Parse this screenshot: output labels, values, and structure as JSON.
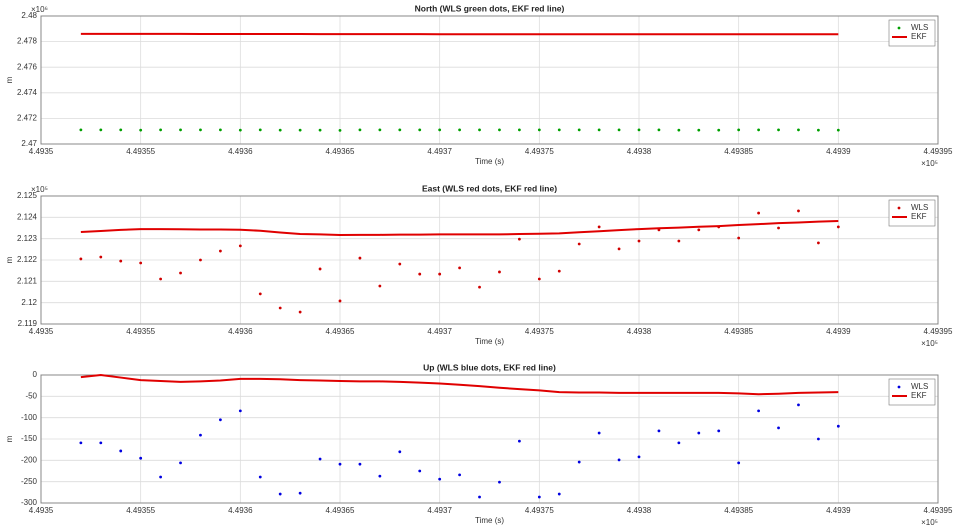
{
  "chart_data": [
    {
      "type": "line",
      "title": "North (WLS green dots, EKF red line)",
      "x_label": "Time (s)",
      "y_label": "m",
      "x_exponent": "×10⁵",
      "y_exponent": "×10⁶",
      "grid": true,
      "legend": "top-right",
      "xlim": [
        4.4935,
        4.49395
      ],
      "xticks": [
        4.4935,
        4.49355,
        4.4936,
        4.49365,
        4.4937,
        4.49375,
        4.4938,
        4.49385,
        4.4939,
        4.49395
      ],
      "ylim": [
        2.47,
        2.48
      ],
      "yticks": [
        2.47,
        2.472,
        2.474,
        2.476,
        2.478,
        2.48
      ],
      "x": [
        4.49352,
        4.49353,
        4.49354,
        4.49355,
        4.49356,
        4.49357,
        4.49358,
        4.49359,
        4.4936,
        4.49361,
        4.49362,
        4.49363,
        4.49364,
        4.49365,
        4.49366,
        4.49367,
        4.49368,
        4.49369,
        4.4937,
        4.49371,
        4.49372,
        4.49373,
        4.49374,
        4.49375,
        4.49376,
        4.49377,
        4.49378,
        4.49379,
        4.4938,
        4.49381,
        4.49382,
        4.49383,
        4.49384,
        4.49385,
        4.49386,
        4.49387,
        4.49388,
        4.49389,
        4.4939
      ],
      "series": [
        {
          "name": "WLS",
          "mode": "markers",
          "color": "#00a000",
          "values": [
            2.4711,
            2.4711,
            2.4711,
            2.47108,
            2.4711,
            2.4711,
            2.4711,
            2.4711,
            2.47108,
            2.4711,
            2.47108,
            2.47108,
            2.47108,
            2.47106,
            2.4711,
            2.4711,
            2.4711,
            2.4711,
            2.4711,
            2.4711,
            2.4711,
            2.4711,
            2.4711,
            2.4711,
            2.4711,
            2.4711,
            2.4711,
            2.4711,
            2.4711,
            2.4711,
            2.47108,
            2.47108,
            2.47108,
            2.4711,
            2.4711,
            2.4711,
            2.4711,
            2.47108,
            2.47108
          ]
        },
        {
          "name": "EKF",
          "mode": "line",
          "color": "#e00000",
          "values": [
            2.4786,
            2.4786,
            2.4786,
            2.4786,
            2.4786,
            2.4786,
            2.47859,
            2.47859,
            2.47859,
            2.47859,
            2.47859,
            2.47859,
            2.47858,
            2.47858,
            2.47858,
            2.47858,
            2.47858,
            2.47858,
            2.47857,
            2.47857,
            2.47857,
            2.47857,
            2.47857,
            2.47857,
            2.47857,
            2.47857,
            2.47857,
            2.47857,
            2.47857,
            2.47857,
            2.47857,
            2.47857,
            2.47857,
            2.47857,
            2.47857,
            2.47857,
            2.47857,
            2.47857,
            2.47857
          ]
        }
      ]
    },
    {
      "type": "line",
      "title": "East (WLS red dots, EKF red line)",
      "x_label": "Time (s)",
      "y_label": "m",
      "x_exponent": "×10⁵",
      "y_exponent": "×10⁵",
      "grid": true,
      "legend": "top-right",
      "xlim": [
        4.4935,
        4.49395
      ],
      "xticks": [
        4.4935,
        4.49355,
        4.4936,
        4.49365,
        4.4937,
        4.49375,
        4.4938,
        4.49385,
        4.4939,
        4.49395
      ],
      "ylim": [
        2.119,
        2.125
      ],
      "yticks": [
        2.119,
        2.12,
        2.121,
        2.122,
        2.123,
        2.124,
        2.125
      ],
      "x": [
        4.49352,
        4.49353,
        4.49354,
        4.49355,
        4.49356,
        4.49357,
        4.49358,
        4.49359,
        4.4936,
        4.49361,
        4.49362,
        4.49363,
        4.49364,
        4.49365,
        4.49366,
        4.49367,
        4.49368,
        4.49369,
        4.4937,
        4.49371,
        4.49372,
        4.49373,
        4.49374,
        4.49375,
        4.49376,
        4.49377,
        4.49378,
        4.49379,
        4.4938,
        4.49381,
        4.49382,
        4.49383,
        4.49384,
        4.49385,
        4.49386,
        4.49387,
        4.49388,
        4.49389,
        4.4939
      ],
      "series": [
        {
          "name": "WLS",
          "mode": "markers",
          "color": "#d00000",
          "values": [
            2.12205,
            2.12214,
            2.12195,
            2.12186,
            2.12111,
            2.12139,
            2.122,
            2.12242,
            2.12266,
            2.12041,
            2.11975,
            2.11956,
            2.12158,
            2.12008,
            2.12209,
            2.12078,
            2.12181,
            2.12134,
            2.12134,
            2.12163,
            2.12073,
            2.12144,
            2.12298,
            2.12111,
            2.12148,
            2.12275,
            2.12355,
            2.12252,
            2.12289,
            2.12341,
            2.12289,
            2.12341,
            2.12355,
            2.12303,
            2.1242,
            2.1235,
            2.1243,
            2.1228,
            2.12355
          ]
        },
        {
          "name": "EKF",
          "mode": "line",
          "color": "#e00000",
          "values": [
            2.12331,
            2.12336,
            2.12341,
            2.12345,
            2.12345,
            2.12344,
            2.12343,
            2.12343,
            2.12342,
            2.12337,
            2.12329,
            2.12322,
            2.1232,
            2.12317,
            2.12318,
            2.12318,
            2.12319,
            2.12319,
            2.1232,
            2.1232,
            2.1232,
            2.1232,
            2.12322,
            2.12323,
            2.12325,
            2.1233,
            2.12335,
            2.1234,
            2.12345,
            2.12349,
            2.12352,
            2.12356,
            2.12359,
            2.12364,
            2.12368,
            2.12373,
            2.12376,
            2.1238,
            2.12383
          ]
        }
      ]
    },
    {
      "type": "line",
      "title": "Up (WLS blue dots, EKF red line)",
      "x_label": "Time (s)",
      "y_label": "m",
      "x_exponent": "×10⁵",
      "grid": true,
      "legend": "top-right",
      "xlim": [
        4.4935,
        4.49395
      ],
      "xticks": [
        4.4935,
        4.49355,
        4.4936,
        4.49365,
        4.4937,
        4.49375,
        4.4938,
        4.49385,
        4.4939,
        4.49395
      ],
      "ylim": [
        -300,
        0
      ],
      "yticks": [
        -300,
        -250,
        -200,
        -150,
        -100,
        -50,
        0
      ],
      "x": [
        4.49352,
        4.49353,
        4.49354,
        4.49355,
        4.49356,
        4.49357,
        4.49358,
        4.49359,
        4.4936,
        4.49361,
        4.49362,
        4.49363,
        4.49364,
        4.49365,
        4.49366,
        4.49367,
        4.49368,
        4.49369,
        4.4937,
        4.49371,
        4.49372,
        4.49373,
        4.49374,
        4.49375,
        4.49376,
        4.49377,
        4.49378,
        4.49379,
        4.4938,
        4.49381,
        4.49382,
        4.49383,
        4.49384,
        4.49385,
        4.49386,
        4.49387,
        4.49388,
        4.49389,
        4.4939
      ],
      "series": [
        {
          "name": "WLS",
          "mode": "markers",
          "color": "#0000e0",
          "values": [
            -159,
            -159,
            -178,
            -195,
            -239,
            -206,
            -141,
            -105,
            -84,
            -239,
            -279,
            -277,
            -197,
            -209,
            -209,
            -237,
            -180,
            -225,
            -244,
            -234,
            -286,
            -251,
            -155,
            -286,
            -279,
            -204,
            -136,
            -199,
            -192,
            -131,
            -159,
            -136,
            -131,
            -206,
            -84,
            -124,
            -70,
            -150,
            -120
          ]
        },
        {
          "name": "EKF",
          "mode": "line",
          "color": "#e00000",
          "values": [
            -5,
            0,
            -6,
            -12,
            -14,
            -16,
            -15,
            -13,
            -9,
            -9,
            -10,
            -12,
            -13,
            -14,
            -15,
            -15,
            -16,
            -18,
            -20,
            -23,
            -26,
            -30,
            -33,
            -36,
            -40,
            -41,
            -41,
            -42,
            -42,
            -42,
            -42,
            -42,
            -42,
            -43,
            -45,
            -44,
            -42,
            -41,
            -40
          ]
        }
      ]
    }
  ]
}
